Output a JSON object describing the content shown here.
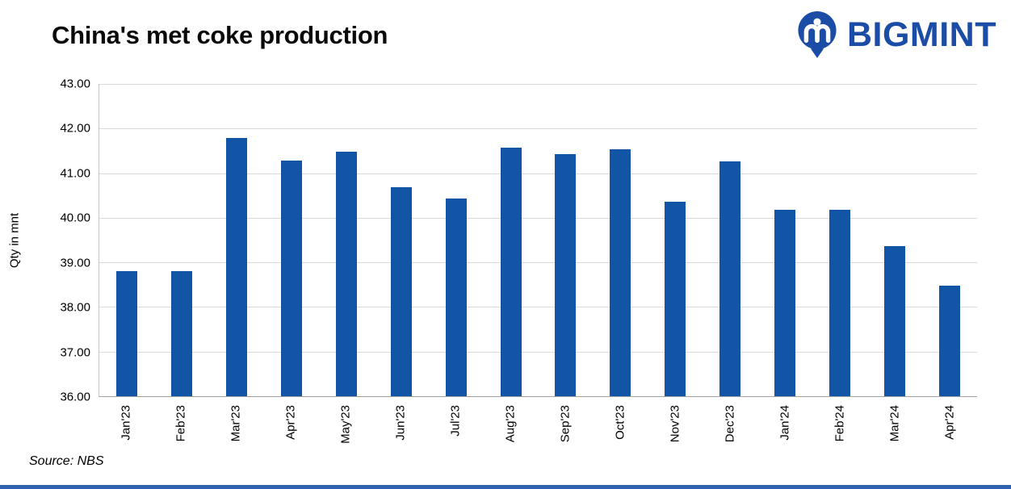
{
  "header": {
    "title": "China's met coke production",
    "brand": "BIGMINT"
  },
  "chart_data": {
    "type": "bar",
    "title": "China's met coke production",
    "ylabel": "Qty in mnt",
    "xlabel": "",
    "ylim": [
      36,
      43
    ],
    "yticks": [
      43,
      42,
      41,
      40,
      39,
      38,
      37,
      36
    ],
    "ytick_labels": [
      "43.00",
      "42.00",
      "41.00",
      "40.00",
      "39.00",
      "38.00",
      "37.00",
      "36.00"
    ],
    "categories": [
      "Jan'23",
      "Feb'23",
      "Mar'23",
      "Apr'23",
      "May'23",
      "Jun'23",
      "Jul'23",
      "Aug'23",
      "Sep'23",
      "Oct'23",
      "Nov'23",
      "Dec'23",
      "Jan'24",
      "Feb'24",
      "Mar'24",
      "Apr'24"
    ],
    "values": [
      38.81,
      38.81,
      41.78,
      41.28,
      41.48,
      40.68,
      40.43,
      41.58,
      41.42,
      41.53,
      40.36,
      41.26,
      40.18,
      40.18,
      39.37,
      38.47
    ],
    "grid": true,
    "legend": "none",
    "bar_color": "#1254a6"
  },
  "footer": {
    "source": "Source: NBS"
  },
  "colors": {
    "brand_blue": "#1b4da6",
    "bar_blue": "#1254a6",
    "gridline": "#d9d9d9",
    "axis": "#9f9f9f",
    "bottom_strip": "#2e64ad"
  }
}
